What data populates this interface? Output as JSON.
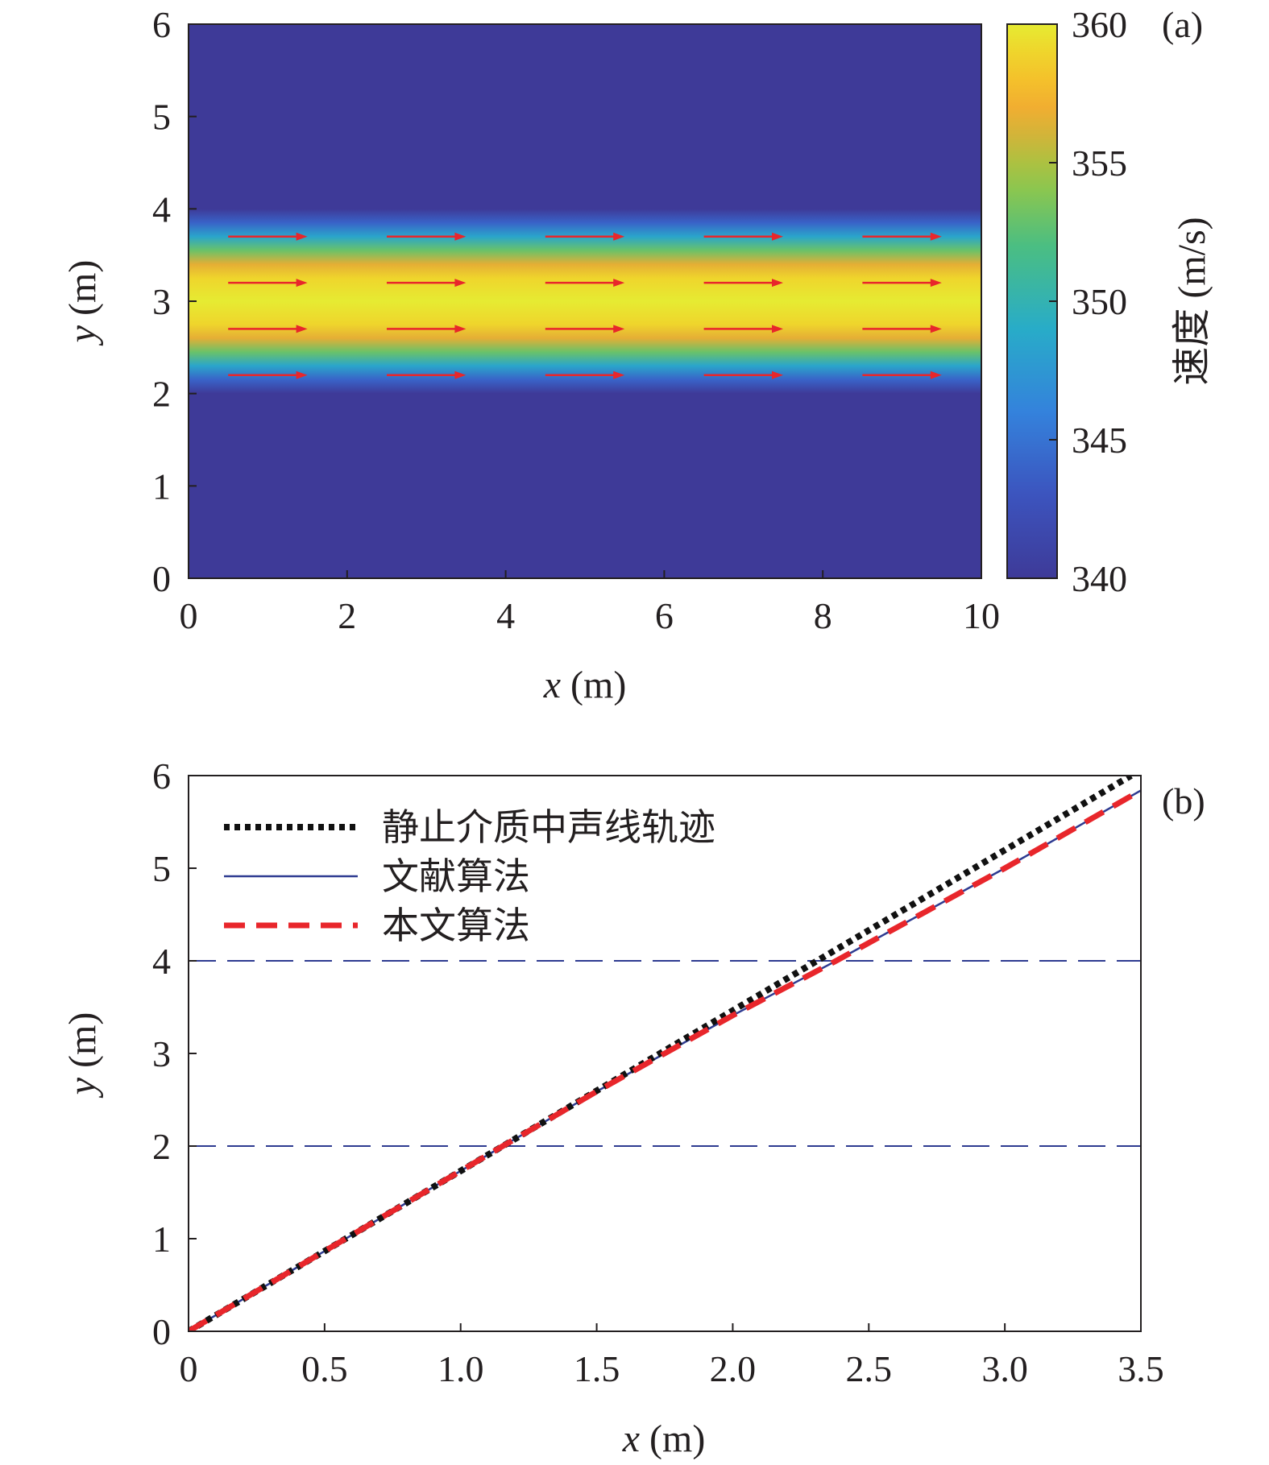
{
  "chart_data": [
    {
      "panel": "(a)",
      "type": "heatmap",
      "xlabel_var": "x",
      "xlabel_unit": " (m)",
      "ylabel_var": "y",
      "ylabel_unit": " (m)",
      "xlim": [
        0,
        10
      ],
      "ylim": [
        0,
        6
      ],
      "xticks": [
        0,
        2,
        4,
        6,
        8,
        10
      ],
      "yticks": [
        0,
        1,
        2,
        3,
        4,
        5,
        6
      ],
      "colorbar": {
        "label": "速度 (m/s)",
        "range": [
          340,
          360
        ],
        "ticks": [
          340,
          345,
          350,
          355,
          360
        ],
        "colormap": "parula"
      },
      "field": {
        "description_values": {
          "background_speed": 340,
          "jet_center_speed": 360,
          "jet_center_y": 3,
          "jet_y_range": [
            2,
            4
          ]
        },
        "profile_y": [
          2.0,
          2.15,
          2.3,
          2.45,
          2.6,
          2.75,
          3.0,
          3.25,
          3.4,
          3.55,
          3.7,
          3.85,
          4.0
        ],
        "profile_speed": [
          340,
          344,
          348.5,
          353,
          356.5,
          359,
          360,
          359,
          356.5,
          353,
          348.5,
          344,
          340
        ]
      },
      "arrows": {
        "color": "#e8262b",
        "rows_y": [
          3.7,
          3.2,
          2.7,
          2.2
        ],
        "x_starts": [
          0.5,
          2.5,
          4.5,
          6.5,
          8.5
        ],
        "length": 1.0,
        "direction": "+x"
      }
    },
    {
      "panel": "(b)",
      "type": "line",
      "xlabel_var": "x",
      "xlabel_unit": " (m)",
      "ylabel_var": "y",
      "ylabel_unit": " (m)",
      "xlim": [
        0,
        3.5
      ],
      "ylim": [
        0,
        6
      ],
      "xticks": [
        "0",
        "0.5",
        "1.0",
        "1.5",
        "2.0",
        "2.5",
        "3.0",
        "3.5"
      ],
      "xtick_values": [
        0,
        0.5,
        1.0,
        1.5,
        2.0,
        2.5,
        3.0,
        3.5
      ],
      "yticks": [
        0,
        1,
        2,
        3,
        4,
        5,
        6
      ],
      "reference_lines": {
        "y": [
          2,
          4
        ],
        "style": "dashed",
        "color": "#2e3b91"
      },
      "legend_position": "top-left",
      "series": [
        {
          "name": "静止介质中声线轨迹",
          "style": "dotted",
          "color": "#111111",
          "x": [
            0,
            1.155,
            2.31,
            3.464
          ],
          "y": [
            0,
            2,
            4,
            6
          ]
        },
        {
          "name": "文献算法",
          "style": "solid",
          "color": "#2e3b91",
          "x": [
            0,
            1.155,
            1.5,
            2.0,
            2.38,
            3.0,
            3.5
          ],
          "y": [
            0,
            2,
            2.59,
            3.41,
            4,
            5.0,
            5.84
          ]
        },
        {
          "name": "本文算法",
          "style": "dashed",
          "color": "#e8262b",
          "x": [
            0,
            1.155,
            1.5,
            2.0,
            2.38,
            3.0,
            3.5
          ],
          "y": [
            0,
            2,
            2.59,
            3.41,
            4,
            5.0,
            5.84
          ]
        }
      ]
    }
  ]
}
